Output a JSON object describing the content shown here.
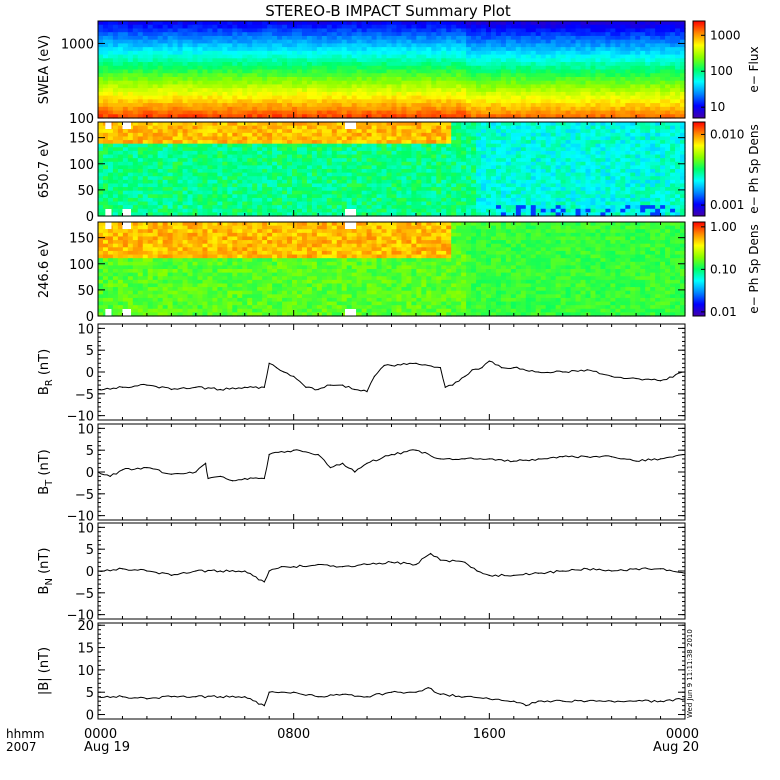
{
  "title": "STEREO-B IMPACT Summary Plot",
  "timestamp_label": "Wed Jun  9 11:11:38 2010",
  "time_axis": {
    "label_line1": "hhmm",
    "label_line2": "2007",
    "ticks": [
      {
        "hour": 0,
        "label": "0000",
        "sublabel": "Aug 19"
      },
      {
        "hour": 8,
        "label": "0800",
        "sublabel": ""
      },
      {
        "hour": 16,
        "label": "1600",
        "sublabel": ""
      },
      {
        "hour": 24,
        "label": "0000",
        "sublabel": "Aug 20"
      }
    ],
    "range_hours": [
      0,
      24
    ]
  },
  "colors": {
    "spectrogram_scale": [
      "#4400aa",
      "#0000ff",
      "#0088ff",
      "#00ffff",
      "#00ff66",
      "#88ff00",
      "#ffff00",
      "#ff8800",
      "#ff0000"
    ],
    "gap": "#ffffff",
    "trace": "#000000"
  },
  "chart_data": [
    {
      "type": "heatmap",
      "panel": "swea",
      "ylabel": "SWEA (eV)",
      "ylim": [
        100,
        2000
      ],
      "yscale": "log",
      "yticks": [
        {
          "value": 1000,
          "label": "1000"
        },
        {
          "value": 100,
          "label": "100"
        }
      ],
      "colorbar": {
        "label": "e− Flux",
        "scale": "log",
        "range": [
          5,
          2500
        ],
        "ticks": [
          {
            "value": 1000,
            "label": "1000"
          },
          {
            "value": 100,
            "label": "100"
          },
          {
            "value": 10,
            "label": "10"
          }
        ]
      }
    },
    {
      "type": "heatmap",
      "panel": "pad650",
      "ylabel": "650.7 eV",
      "ylim": [
        0,
        180
      ],
      "yticks": [
        {
          "value": 150,
          "label": "150"
        },
        {
          "value": 100,
          "label": "100"
        },
        {
          "value": 50,
          "label": "50"
        },
        {
          "value": 0,
          "label": "0"
        }
      ],
      "colorbar": {
        "label": "e− Ph Sp Dens",
        "scale": "log",
        "range": [
          0.0007,
          0.015
        ],
        "ticks": [
          {
            "value": 0.01,
            "label": "0.010"
          },
          {
            "value": 0.001,
            "label": "0.001"
          }
        ]
      }
    },
    {
      "type": "heatmap",
      "panel": "pad246",
      "ylabel": "246.6 eV",
      "ylim": [
        0,
        180
      ],
      "yticks": [
        {
          "value": 150,
          "label": "150"
        },
        {
          "value": 100,
          "label": "100"
        },
        {
          "value": 50,
          "label": "50"
        },
        {
          "value": 0,
          "label": "0"
        }
      ],
      "colorbar": {
        "label": "e− Ph Sp Dens",
        "scale": "log",
        "range": [
          0.008,
          1.3
        ],
        "ticks": [
          {
            "value": 1,
            "label": "1.00"
          },
          {
            "value": 0.1,
            "label": "0.10"
          },
          {
            "value": 0.01,
            "label": "0.01"
          }
        ]
      }
    },
    {
      "type": "line",
      "panel": "br",
      "ylabel": "B",
      "ylabel_sub": "R",
      "ylabel_unit": " (nT)",
      "ylim": [
        -11,
        11
      ],
      "yticks": [
        {
          "value": 10,
          "label": "10"
        },
        {
          "value": 5,
          "label": "5"
        },
        {
          "value": 0,
          "label": "0"
        },
        {
          "value": -5,
          "label": "−5"
        },
        {
          "value": -10,
          "label": "−10"
        }
      ],
      "x": [
        0,
        1,
        2,
        3,
        4,
        5,
        6,
        6.8,
        7,
        7.3,
        7.6,
        8,
        8.5,
        9,
        9.5,
        10,
        10.5,
        11,
        11.3,
        11.7,
        12,
        13,
        14,
        14.2,
        14.5,
        15,
        15.3,
        15.7,
        16,
        16.5,
        17,
        18,
        19,
        20,
        21,
        22,
        23,
        24
      ],
      "values": [
        -4,
        -3.5,
        -3,
        -4,
        -3.5,
        -4,
        -3.5,
        -3.5,
        2,
        1,
        0,
        -1,
        -3.5,
        -4,
        -3,
        -3,
        -4,
        -4.5,
        -1,
        1.5,
        1.5,
        2,
        1,
        -3.5,
        -3,
        -1,
        0.5,
        1,
        2.5,
        1,
        1,
        0,
        0,
        0.5,
        -1,
        -1.5,
        -2,
        0
      ]
    },
    {
      "type": "line",
      "panel": "bt",
      "ylabel": "B",
      "ylabel_sub": "T",
      "ylabel_unit": " (nT)",
      "ylim": [
        -11,
        11
      ],
      "yticks": [
        {
          "value": 10,
          "label": "10"
        },
        {
          "value": 5,
          "label": "5"
        },
        {
          "value": 0,
          "label": "0"
        },
        {
          "value": -5,
          "label": "−5"
        },
        {
          "value": -10,
          "label": "−10"
        }
      ],
      "x": [
        0,
        0.5,
        1,
        2,
        3,
        4,
        4.4,
        4.5,
        5,
        5.5,
        6,
        6.8,
        7,
        8,
        9,
        9.5,
        10,
        10.5,
        11,
        12,
        13,
        14,
        15,
        16,
        17,
        18,
        19,
        20,
        21,
        22,
        23,
        24
      ],
      "values": [
        0,
        -1,
        0.5,
        1,
        -0.5,
        0,
        2,
        -1.5,
        -1,
        -2,
        -1.5,
        -1.5,
        4,
        5,
        4,
        1,
        2,
        0,
        2,
        4,
        5,
        3,
        3,
        3,
        2.5,
        3,
        3.5,
        3.5,
        3.5,
        2.5,
        3,
        4
      ]
    },
    {
      "type": "line",
      "panel": "bn",
      "ylabel": "B",
      "ylabel_sub": "N",
      "ylabel_unit": " (nT)",
      "ylim": [
        -11,
        11
      ],
      "yticks": [
        {
          "value": 10,
          "label": "10"
        },
        {
          "value": 5,
          "label": "5"
        },
        {
          "value": 0,
          "label": "0"
        },
        {
          "value": -5,
          "label": "−5"
        },
        {
          "value": -10,
          "label": "−10"
        }
      ],
      "x": [
        0,
        1,
        2,
        3,
        4,
        5,
        6,
        6.8,
        7,
        7.5,
        8,
        9,
        10,
        11,
        12,
        13,
        13.6,
        14,
        15,
        15.5,
        16,
        17,
        18,
        19,
        20,
        21,
        22,
        23,
        24
      ],
      "values": [
        0,
        0.5,
        0,
        -1,
        0,
        0,
        0,
        -2.5,
        0,
        1,
        1,
        1.5,
        1,
        1.5,
        2,
        1.5,
        4,
        2.5,
        2,
        0,
        -1,
        -1,
        -0.5,
        0,
        0.5,
        0,
        0.5,
        0.5,
        -0.5
      ]
    },
    {
      "type": "line",
      "panel": "bmag",
      "ylabel": "|B| (nT)",
      "ylim": [
        -1,
        20.5
      ],
      "yticks": [
        {
          "value": 20,
          "label": "20"
        },
        {
          "value": 15,
          "label": "15"
        },
        {
          "value": 10,
          "label": "10"
        },
        {
          "value": 5,
          "label": "5"
        },
        {
          "value": 0,
          "label": "0"
        }
      ],
      "x": [
        0,
        1,
        2,
        3,
        4,
        5,
        6,
        6.8,
        7,
        8,
        9,
        10,
        11,
        12,
        13,
        13.5,
        14,
        15,
        16,
        17,
        17.5,
        18,
        19,
        20,
        21,
        22,
        23,
        24
      ],
      "values": [
        4,
        4,
        3.5,
        4,
        4,
        4,
        4,
        2,
        5,
        5,
        4,
        4.5,
        4,
        5,
        5,
        6,
        4.5,
        4,
        3.5,
        3,
        2,
        3,
        3,
        3,
        3,
        3,
        3,
        3.5
      ]
    }
  ]
}
